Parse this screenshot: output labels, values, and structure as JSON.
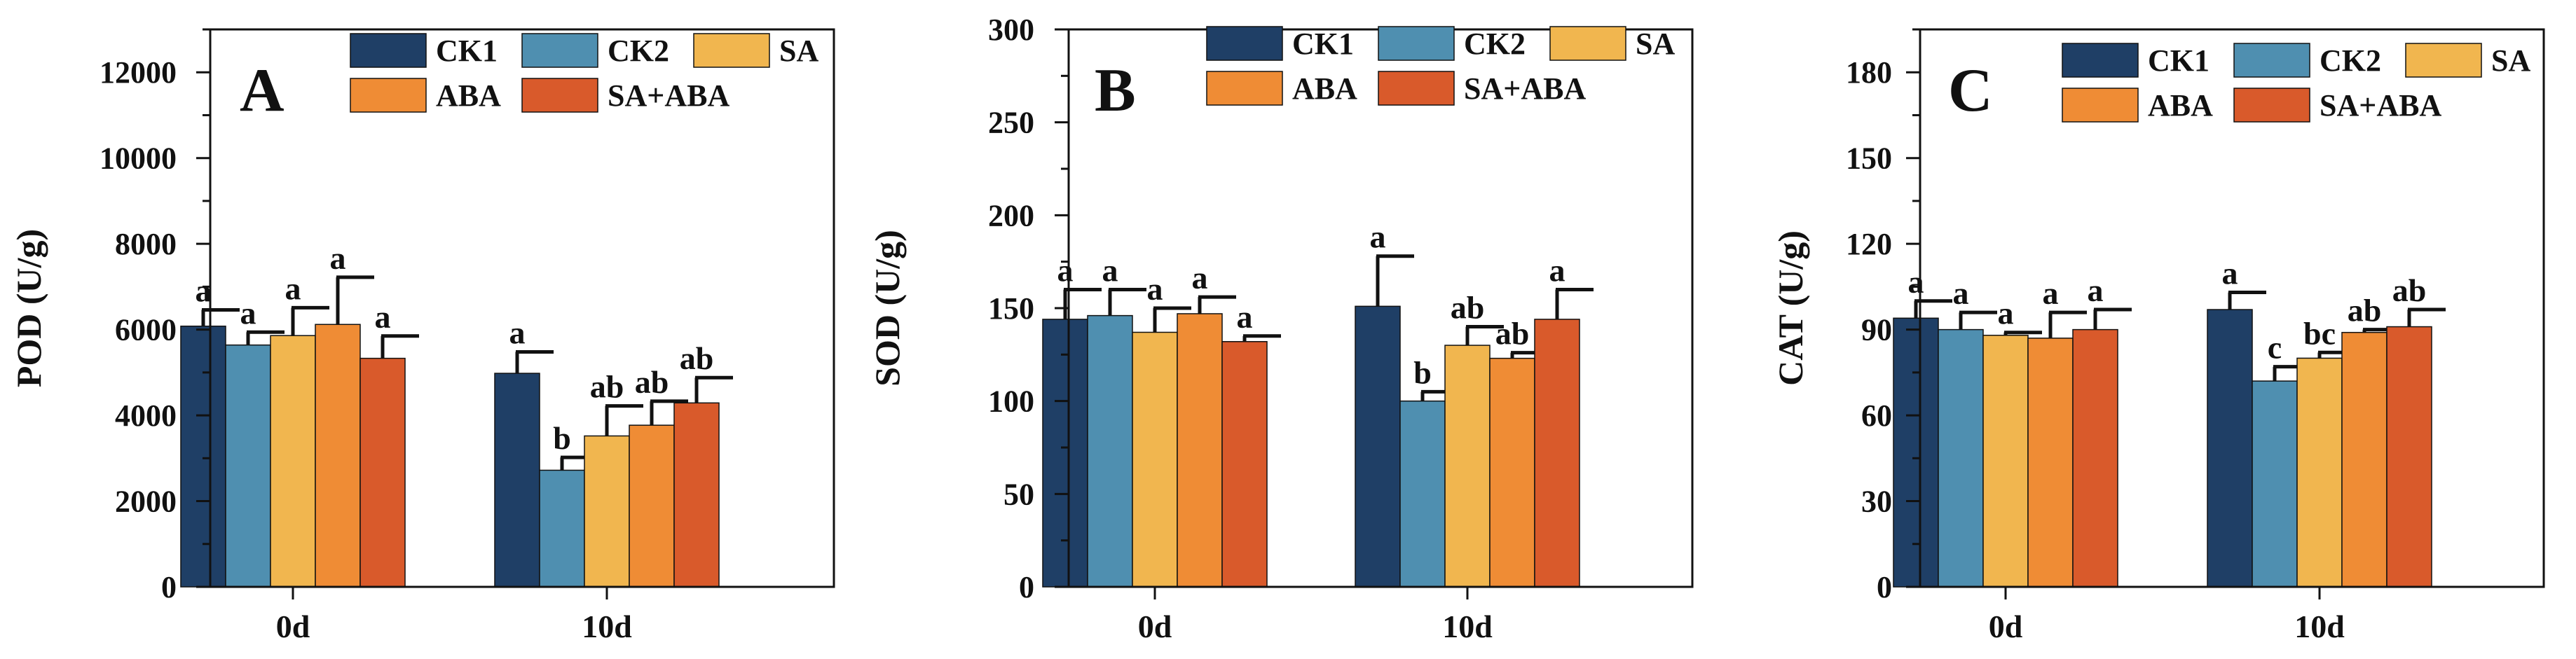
{
  "figure": {
    "description_free": true
  },
  "legend_labels": [
    "CK1",
    "CK2",
    "SA",
    "ABA",
    "SA+ABA"
  ],
  "colors": {
    "CK1": "#1f3f66",
    "CK2": "#4f8fb0",
    "SA": "#f1b64f",
    "ABA": "#ef8c35",
    "SA+ABA": "#d95a2b",
    "axis": "#111111"
  },
  "chart_data": [
    {
      "type": "bar",
      "panel_letter": "A",
      "ylabel": "POD (U/g)",
      "xlabel": "",
      "categories": [
        "0d",
        "10d"
      ],
      "ylim": [
        0,
        13000
      ],
      "yticks": [
        0,
        2000,
        4000,
        6000,
        8000,
        10000,
        12000
      ],
      "ytick_labels": [
        "0",
        "2000",
        "4000",
        "6000",
        "8000",
        "10000",
        "12000"
      ],
      "series": [
        {
          "name": "CK1",
          "values": [
            6080,
            4980
          ],
          "errors": [
            380,
            500
          ],
          "letters": [
            "a",
            "a"
          ]
        },
        {
          "name": "CK2",
          "values": [
            5640,
            2720
          ],
          "errors": [
            300,
            300
          ],
          "letters": [
            "a",
            "b"
          ]
        },
        {
          "name": "SA",
          "values": [
            5860,
            3520
          ],
          "errors": [
            650,
            700
          ],
          "letters": [
            "a",
            "ab"
          ]
        },
        {
          "name": "ABA",
          "values": [
            6120,
            3770
          ],
          "errors": [
            1100,
            560
          ],
          "letters": [
            "a",
            "ab"
          ]
        },
        {
          "name": "SA+ABA",
          "values": [
            5330,
            4290
          ],
          "errors": [
            520,
            590
          ],
          "letters": [
            "a",
            "ab"
          ]
        }
      ]
    },
    {
      "type": "bar",
      "panel_letter": "B",
      "ylabel": "SOD (U/g)",
      "xlabel": "",
      "categories": [
        "0d",
        "10d"
      ],
      "ylim": [
        0,
        300
      ],
      "yticks": [
        0,
        50,
        100,
        150,
        200,
        250,
        300
      ],
      "ytick_labels": [
        "0",
        "50",
        "100",
        "150",
        "200",
        "250",
        "300"
      ],
      "series": [
        {
          "name": "CK1",
          "values": [
            144,
            151
          ],
          "errors": [
            16,
            27
          ],
          "letters": [
            "a",
            "a"
          ]
        },
        {
          "name": "CK2",
          "values": [
            146,
            100
          ],
          "errors": [
            14,
            5
          ],
          "letters": [
            "a",
            "b"
          ]
        },
        {
          "name": "SA",
          "values": [
            137,
            130
          ],
          "errors": [
            13,
            10
          ],
          "letters": [
            "a",
            "ab"
          ]
        },
        {
          "name": "ABA",
          "values": [
            147,
            123
          ],
          "errors": [
            9,
            3
          ],
          "letters": [
            "a",
            "ab"
          ]
        },
        {
          "name": "SA+ABA",
          "values": [
            132,
            144
          ],
          "errors": [
            3,
            16
          ],
          "letters": [
            "a",
            "a"
          ]
        }
      ]
    },
    {
      "type": "bar",
      "panel_letter": "C",
      "ylabel": "CAT (U/g)",
      "xlabel": "",
      "categories": [
        "0d",
        "10d"
      ],
      "ylim": [
        0,
        195
      ],
      "yticks": [
        0,
        30,
        60,
        90,
        120,
        150,
        180
      ],
      "ytick_labels": [
        "0",
        "30",
        "60",
        "90",
        "120",
        "150",
        "180"
      ],
      "series": [
        {
          "name": "CK1",
          "values": [
            94,
            97
          ],
          "errors": [
            6,
            6
          ],
          "letters": [
            "a",
            "a"
          ]
        },
        {
          "name": "CK2",
          "values": [
            90,
            72
          ],
          "errors": [
            6,
            5
          ],
          "letters": [
            "a",
            "c"
          ]
        },
        {
          "name": "SA",
          "values": [
            88,
            80
          ],
          "errors": [
            1,
            2
          ],
          "letters": [
            "a",
            "bc"
          ]
        },
        {
          "name": "ABA",
          "values": [
            87,
            89
          ],
          "errors": [
            9,
            1
          ],
          "letters": [
            "a",
            "ab"
          ]
        },
        {
          "name": "SA+ABA",
          "values": [
            90,
            91
          ],
          "errors": [
            7,
            6
          ],
          "letters": [
            "a",
            "ab"
          ]
        }
      ]
    }
  ]
}
